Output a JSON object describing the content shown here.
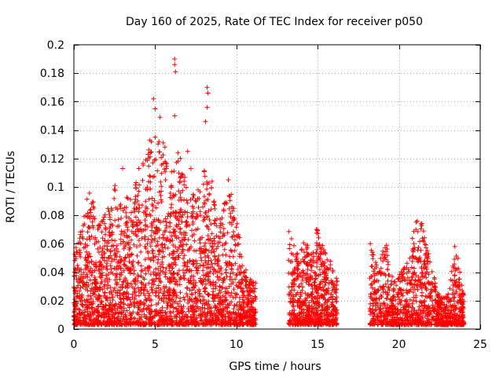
{
  "chart_data": {
    "type": "scatter",
    "title": "Day 160 of 2025, Rate Of TEC Index for receiver p050",
    "xlabel": "GPS time / hours",
    "ylabel": "ROTI / TECUs",
    "xlim": [
      0,
      25
    ],
    "ylim": [
      0,
      0.2
    ],
    "xticks": [
      0,
      5,
      10,
      15,
      20,
      25
    ],
    "yticks": [
      0,
      0.02,
      0.04,
      0.06,
      0.08,
      0.1,
      0.12,
      0.14,
      0.16,
      0.18,
      0.2
    ],
    "xtick_labels": [
      "0",
      "5",
      "10",
      "15",
      "20",
      "25"
    ],
    "ytick_labels": [
      "0",
      "0.02",
      "0.04",
      "0.06",
      "0.08",
      "0.1",
      "0.12",
      "0.14",
      "0.16",
      "0.18",
      "0.2"
    ],
    "grid": true,
    "marker": "+",
    "series_color": "#ff0000",
    "series": [
      {
        "name": "ROTI",
        "segments": [
          {
            "x_start": 0.0,
            "x_end": 11.2,
            "seed": 7,
            "count": 2600,
            "envelope": [
              [
                0.0,
                0.05
              ],
              [
                0.5,
                0.07
              ],
              [
                1.0,
                0.1
              ],
              [
                1.5,
                0.07
              ],
              [
                2.0,
                0.08
              ],
              [
                2.5,
                0.1
              ],
              [
                3.0,
                0.08
              ],
              [
                3.5,
                0.1
              ],
              [
                4.0,
                0.11
              ],
              [
                4.5,
                0.12
              ],
              [
                5.0,
                0.15
              ],
              [
                5.5,
                0.12
              ],
              [
                6.0,
                0.11
              ],
              [
                6.5,
                0.12
              ],
              [
                7.0,
                0.1
              ],
              [
                7.5,
                0.09
              ],
              [
                8.0,
                0.11
              ],
              [
                8.5,
                0.1
              ],
              [
                9.0,
                0.08
              ],
              [
                9.5,
                0.1
              ],
              [
                10.0,
                0.08
              ],
              [
                10.5,
                0.04
              ],
              [
                11.2,
                0.03
              ]
            ]
          },
          {
            "x_start": 13.2,
            "x_end": 16.2,
            "seed": 21,
            "count": 650,
            "envelope": [
              [
                13.2,
                0.07
              ],
              [
                13.7,
                0.05
              ],
              [
                14.2,
                0.06
              ],
              [
                14.7,
                0.05
              ],
              [
                15.0,
                0.08
              ],
              [
                15.5,
                0.05
              ],
              [
                16.2,
                0.04
              ]
            ]
          },
          {
            "x_start": 18.2,
            "x_end": 24.0,
            "seed": 33,
            "count": 1100,
            "envelope": [
              [
                18.2,
                0.06
              ],
              [
                18.7,
                0.04
              ],
              [
                19.2,
                0.06
              ],
              [
                19.7,
                0.03
              ],
              [
                20.2,
                0.04
              ],
              [
                20.7,
                0.05
              ],
              [
                21.0,
                0.08
              ],
              [
                21.5,
                0.07
              ],
              [
                22.0,
                0.04
              ],
              [
                22.5,
                0.02
              ],
              [
                23.0,
                0.02
              ],
              [
                23.5,
                0.06
              ],
              [
                24.0,
                0.02
              ]
            ]
          }
        ],
        "outliers": [
          [
            6.2,
            0.19
          ],
          [
            6.2,
            0.186
          ],
          [
            6.25,
            0.181
          ],
          [
            8.2,
            0.17
          ],
          [
            8.25,
            0.166
          ],
          [
            8.2,
            0.156
          ],
          [
            8.1,
            0.146
          ],
          [
            4.9,
            0.162
          ],
          [
            5.0,
            0.155
          ],
          [
            5.3,
            0.149
          ],
          [
            5.0,
            0.135
          ],
          [
            5.5,
            0.131
          ],
          [
            5.6,
            0.128
          ],
          [
            6.2,
            0.15
          ],
          [
            6.4,
            0.124
          ],
          [
            4.7,
            0.124
          ],
          [
            7.0,
            0.125
          ],
          [
            8.5,
            0.104
          ],
          [
            9.5,
            0.105
          ],
          [
            3.0,
            0.113
          ],
          [
            4.0,
            0.113
          ],
          [
            7.2,
            0.113
          ]
        ]
      }
    ]
  }
}
